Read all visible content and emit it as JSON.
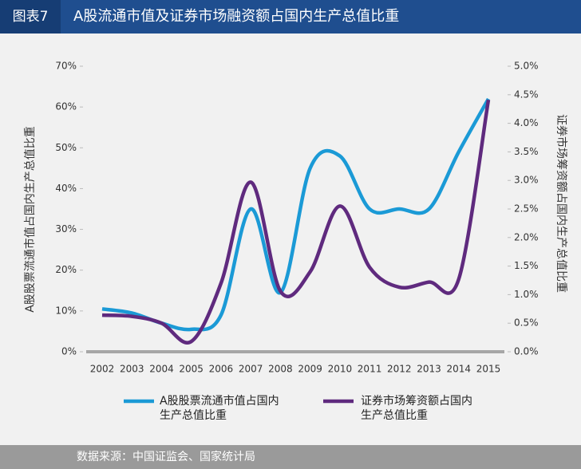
{
  "header": {
    "label": "图表7",
    "title": "A股流通市值及证券市场融资额占国内生产总值比重"
  },
  "chart_data": {
    "type": "line",
    "categories": [
      "2002",
      "2003",
      "2004",
      "2005",
      "2006",
      "2007",
      "2008",
      "2009",
      "2010",
      "2011",
      "2012",
      "2013",
      "2014",
      "2015"
    ],
    "y_label": "A股股票流通市值占国内生产总值比重",
    "y2_label": "证券市场筹资额占国内生产总值比重",
    "series": [
      {
        "name": "A股股票流通市值占国内生产总值比重",
        "color": "#1b9ad6",
        "values": [
          10.5,
          9.5,
          7,
          5.5,
          9,
          35,
          14.5,
          45,
          48,
          35,
          35,
          35,
          49,
          62
        ]
      },
      {
        "name": "证券市场筹资额占国内生产总值比重",
        "color": "#5f2a7e",
        "axis": "y2",
        "values": [
          0.64,
          0.62,
          0.5,
          0.18,
          1.2,
          2.97,
          1.06,
          1.4,
          2.55,
          1.48,
          1.13,
          1.22,
          1.27,
          4.41
        ]
      }
    ],
    "ylim": [
      0,
      70
    ],
    "yticks": [
      {
        "value": 0,
        "label": "0%"
      },
      {
        "value": 10,
        "label": "10%"
      },
      {
        "value": 20,
        "label": "20%"
      },
      {
        "value": 30,
        "label": "30%"
      },
      {
        "value": 40,
        "label": "40%"
      },
      {
        "value": 50,
        "label": "50%"
      },
      {
        "value": 60,
        "label": "60%"
      },
      {
        "value": 70,
        "label": "70%"
      }
    ],
    "y2lim": [
      0,
      5
    ],
    "y2ticks": [
      {
        "value": 0,
        "label": "0.0%"
      },
      {
        "value": 0.5,
        "label": "0.5%"
      },
      {
        "value": 1,
        "label": "1.0%"
      },
      {
        "value": 1.5,
        "label": "1.5%"
      },
      {
        "value": 2,
        "label": "2.0%"
      },
      {
        "value": 2.5,
        "label": "2.5%"
      },
      {
        "value": 3,
        "label": "3.0%"
      },
      {
        "value": 3.5,
        "label": "3.5%"
      },
      {
        "value": 4,
        "label": "4.0%"
      },
      {
        "value": 4.5,
        "label": "4.5%"
      },
      {
        "value": 5,
        "label": "5.0%"
      }
    ]
  },
  "source": "数据来源：中国证监会、国家统计局"
}
